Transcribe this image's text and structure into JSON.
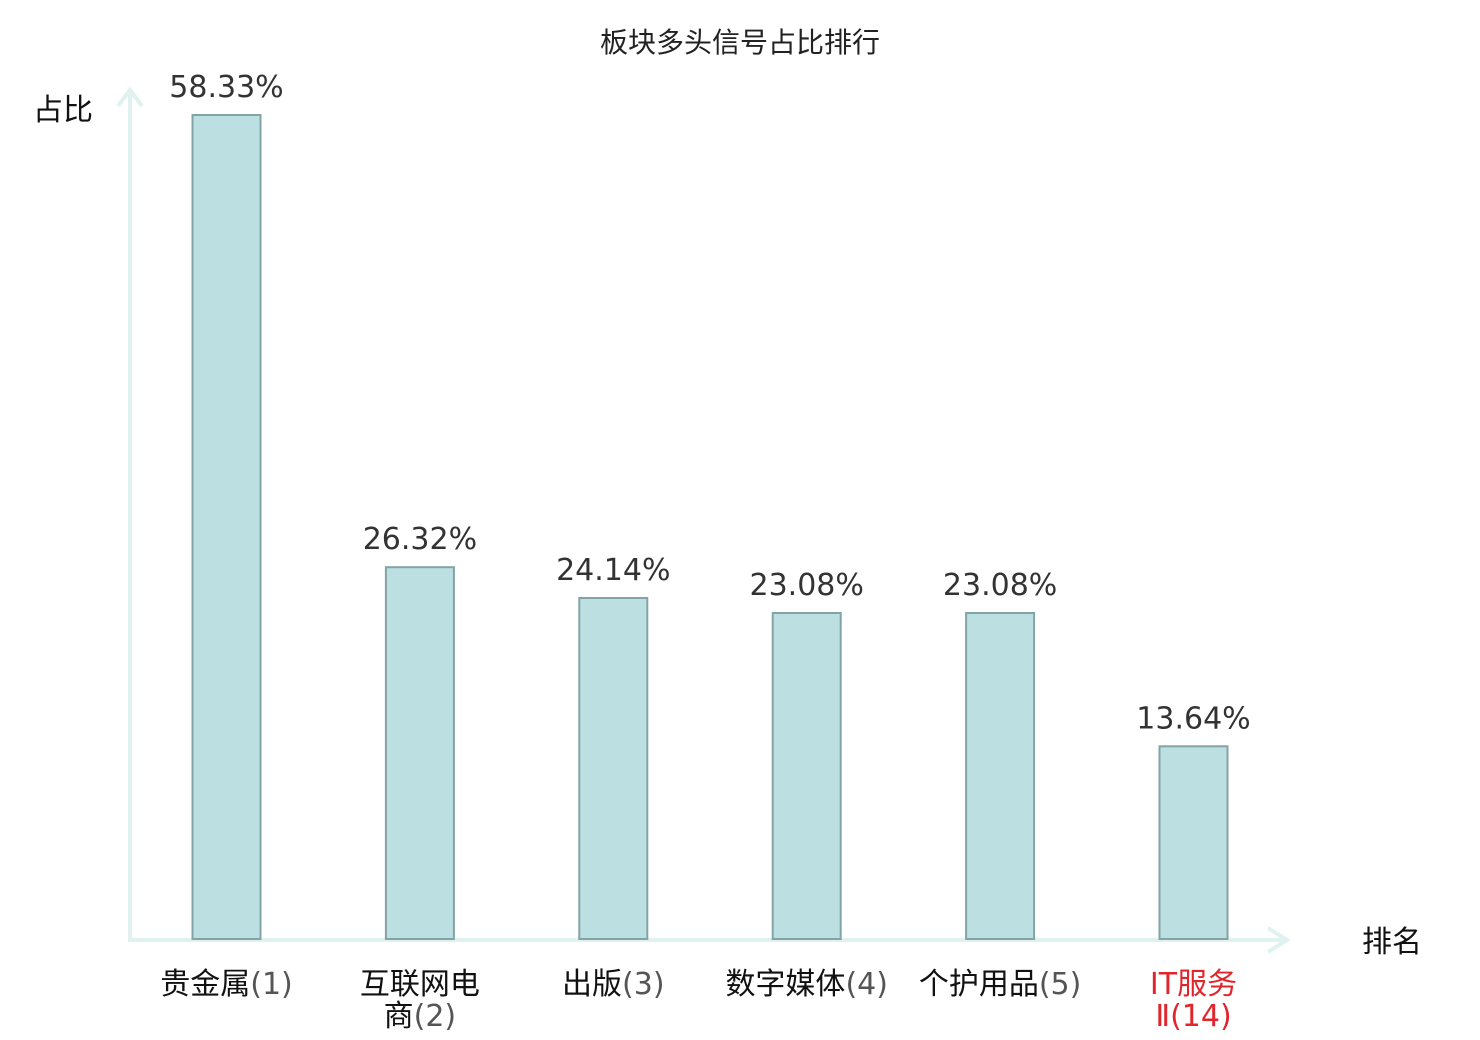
{
  "chart_data": {
    "type": "bar",
    "title": "板块多头信号占比排行",
    "ylabel": "占比",
    "xlabel": "排名",
    "ylim": [
      0,
      58.33
    ],
    "grid": false,
    "categories": [
      {
        "name": "贵金属",
        "rank": "(1)",
        "lines": [
          {
            "name": "贵金属",
            "rank": "(1)"
          }
        ]
      },
      {
        "name": "互联网电商",
        "rank": "(2)",
        "lines": [
          {
            "name": "互联网电",
            "rank": ""
          },
          {
            "name": "商",
            "rank": "(2)"
          }
        ]
      },
      {
        "name": "出版",
        "rank": "(3)",
        "lines": [
          {
            "name": "出版",
            "rank": "(3)"
          }
        ]
      },
      {
        "name": "数字媒体",
        "rank": "(4)",
        "lines": [
          {
            "name": "数字媒体",
            "rank": "(4)"
          }
        ]
      },
      {
        "name": "个护用品",
        "rank": "(5)",
        "lines": [
          {
            "name": "个护用品",
            "rank": "(5)"
          }
        ]
      },
      {
        "name": "IT服务Ⅱ",
        "rank": "(14)",
        "highlight": true,
        "lines": [
          {
            "name": "IT服务",
            "rank": ""
          },
          {
            "name": "Ⅱ",
            "rank": "(14)"
          }
        ]
      }
    ],
    "values": [
      58.33,
      26.32,
      24.14,
      23.08,
      23.08,
      13.64
    ],
    "value_labels": [
      "58.33%",
      "26.32%",
      "24.14%",
      "23.08%",
      "23.08%",
      "13.64%"
    ],
    "colors": {
      "bar_fill": "#bce0e2",
      "bar_stroke": "#83a4a7",
      "axis": "#dff2ef",
      "highlight": "#e0262c"
    }
  }
}
